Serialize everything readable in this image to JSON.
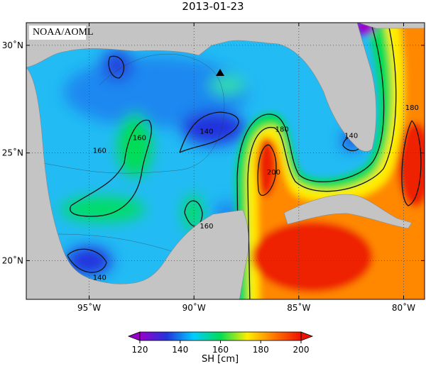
{
  "title": "2013-01-23",
  "source_label": "NOAA/AOML",
  "lonlim": [
    -98,
    -79
  ],
  "latlim": [
    18.2,
    31.05
  ],
  "lonticks": [
    {
      "value": -95,
      "label": "95˚W"
    },
    {
      "value": -90,
      "label": "90˚W"
    },
    {
      "value": -85,
      "label": "85˚W"
    },
    {
      "value": -80,
      "label": "80˚W"
    }
  ],
  "latticks": [
    {
      "value": 20,
      "label": "20˚N"
    },
    {
      "value": 25,
      "label": "25˚N"
    },
    {
      "value": 30,
      "label": "30˚N"
    }
  ],
  "grid": true,
  "contour_labels": [
    140,
    160,
    160,
    180,
    200,
    140,
    160,
    180,
    140
  ],
  "colorbar": {
    "label": "SH [cm]",
    "lim": [
      120,
      200
    ],
    "ticks": [
      120,
      140,
      160,
      180,
      200
    ],
    "colormap": [
      "#9900cc",
      "#2233dd",
      "#00ccff",
      "#00dd55",
      "#ffee00",
      "#ff7700",
      "#ee1100"
    ]
  }
}
